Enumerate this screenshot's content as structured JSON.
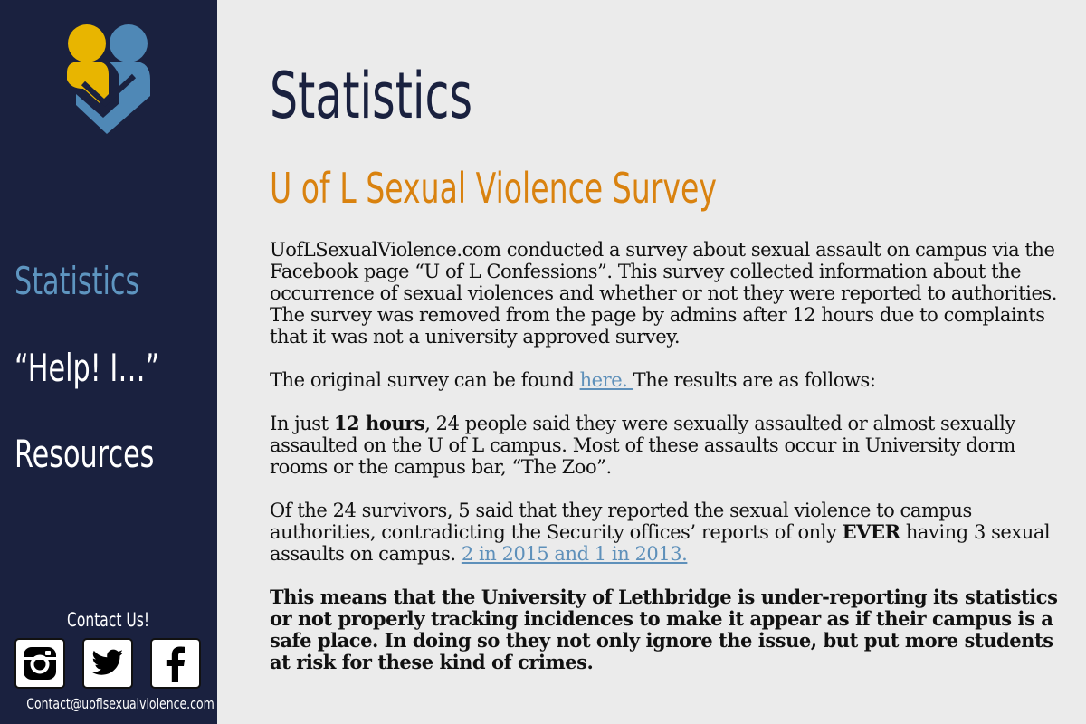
{
  "nav": {
    "items": [
      {
        "label": "Statistics",
        "active": true
      },
      {
        "label": "“Help! I…”",
        "active": false
      },
      {
        "label": "Resources",
        "active": false
      }
    ]
  },
  "contact": {
    "title": "Contact Us!",
    "email": "Contact@uoflsexualviolence.com",
    "social": [
      "instagram-icon",
      "twitter-icon",
      "facebook-icon"
    ]
  },
  "main": {
    "title": "Statistics",
    "section_title": "U of L Sexual Violence Survey",
    "p1": "UofLSexualViolence.com conducted a survey about sexual assault on campus via the Facebook page “U of L Confessions”. This survey collected information about the occurrence of sexual violences and whether or not they were reported to authorities.  The survey was removed from the page by admins after 12 hours due to complaints that it was not a university approved survey.",
    "p2_before": "The original survey can be found ",
    "p2_link": "here. ",
    "p2_after": " The results are as follows:",
    "p3_before": "In just ",
    "p3_bold": "12 hours",
    "p3_after": ", 24 people said they were sexually assaulted or almost sexually assaulted on the U of L campus. Most of these assaults occur in University dorm rooms or the campus bar, “The Zoo”.",
    "p4_before": "Of the 24 survivors, 5 said that they reported the sexual violence to campus authorities, contradicting the Security offices’ reports of only ",
    "p4_bold": "EVER",
    "p4_after": " having 3 sexual assaults on campus. ",
    "p4_link": "2 in 2015 and 1 in 2013. ",
    "p5": "This means that the University of Lethbridge is under-reporting its statistics or not properly tracking incidences to make it appear as if their campus is a safe place. In doing so they not only ignore the issue, but put more students at risk for these kind of crimes."
  },
  "colors": {
    "sidebar_bg": "#1a213f",
    "page_bg": "#ebebeb",
    "accent_blue": "#5e95c0",
    "accent_orange": "#d9820f",
    "logo_yellow": "#e8b500",
    "logo_blue": "#4f88b6"
  }
}
